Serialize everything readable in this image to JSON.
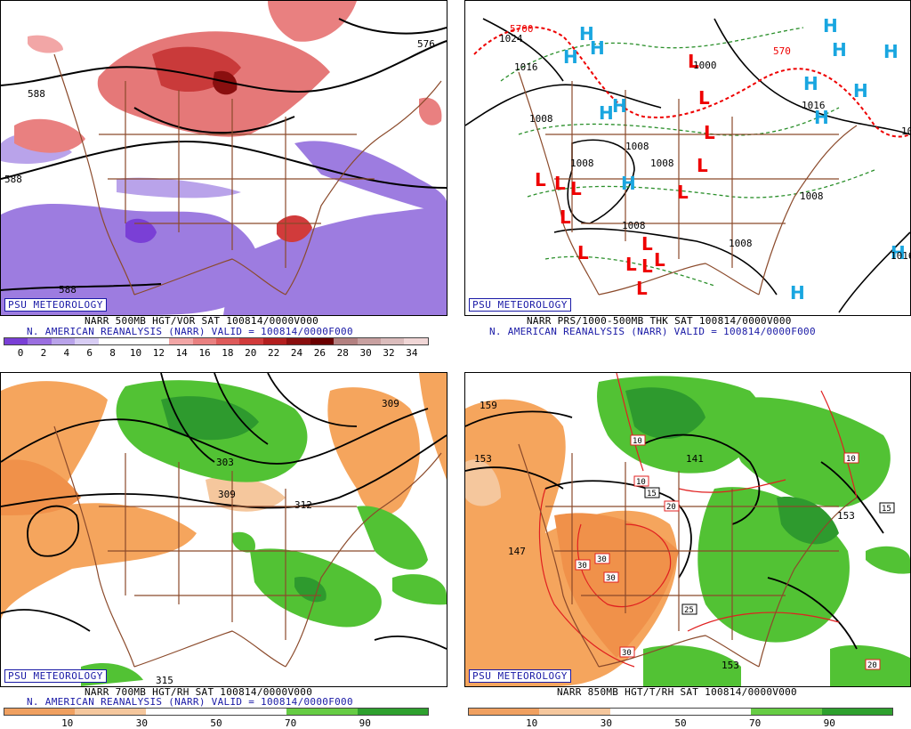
{
  "panels": {
    "p1": {
      "badge": "PSU METEOROLOGY",
      "line1": "NARR 500MB HGT/VOR SAT 100814/0000V000",
      "line2": "N. AMERICAN REANALYSIS (NARR) VALID = 100814/0000F000",
      "labels": [
        "588",
        "588",
        "576",
        "588"
      ],
      "scale_ticks": [
        "0",
        "2",
        "4",
        "6",
        "8",
        "10",
        "12",
        "14",
        "16",
        "18",
        "20",
        "22",
        "24",
        "26",
        "28",
        "30",
        "32",
        "34"
      ],
      "scale_colors": [
        "#7a3fd6",
        "#9b6fe0",
        "#b9a3ea",
        "#d8cdf4",
        "#ffffff",
        "#ffffff",
        "#ffffff",
        "#f2a6a6",
        "#e98080",
        "#de5a5a",
        "#d13b3b",
        "#b31f1f",
        "#8a0f0f",
        "#6b0000",
        "#b38080",
        "#c8a0a0",
        "#dbbcbc",
        "#f0d6d6"
      ]
    },
    "p2": {
      "badge": "PSU METEOROLOGY",
      "line1": "NARR PRS/1000-500MB THK SAT 100814/0000V000",
      "line2": "N. AMERICAN REANALYSIS (NARR) VALID = 100814/0000F000",
      "labels": [
        "5700",
        "1024",
        "1016",
        "1008",
        "1008",
        "1008",
        "1008",
        "1008",
        "1008",
        "1008",
        "1016",
        "1000",
        "570",
        "1016",
        "10"
      ]
    },
    "p3": {
      "badge": "PSU METEOROLOGY",
      "line1": "NARR 700MB HGT/RH SAT 100814/0000V000",
      "line2": "N. AMERICAN REANALYSIS (NARR) VALID = 100814/0000F000",
      "labels": [
        "309",
        "303",
        "309",
        "312",
        "315"
      ],
      "scale_ticks": [
        "10",
        "30",
        "50",
        "70",
        "90"
      ],
      "scale_colors": [
        "#f0a060",
        "#f5c79d",
        "#ffffff",
        "#ffffff",
        "#66cc44",
        "#2ea02e"
      ]
    },
    "p4": {
      "badge": "PSU METEOROLOGY",
      "line1": "NARR 850MB HGT/T/RH SAT 100814/0000V000",
      "labels": [
        "159",
        "153",
        "147",
        "141",
        "153",
        "153"
      ],
      "temp_labels": [
        "10",
        "10",
        "15",
        "20",
        "30",
        "30",
        "30",
        "25",
        "30",
        "10",
        "15",
        "20"
      ],
      "scale_ticks": [
        "10",
        "30",
        "50",
        "70",
        "90"
      ],
      "scale_colors": [
        "#f0a060",
        "#f5c79d",
        "#ffffff",
        "#ffffff",
        "#66cc44",
        "#2ea02e"
      ]
    }
  }
}
